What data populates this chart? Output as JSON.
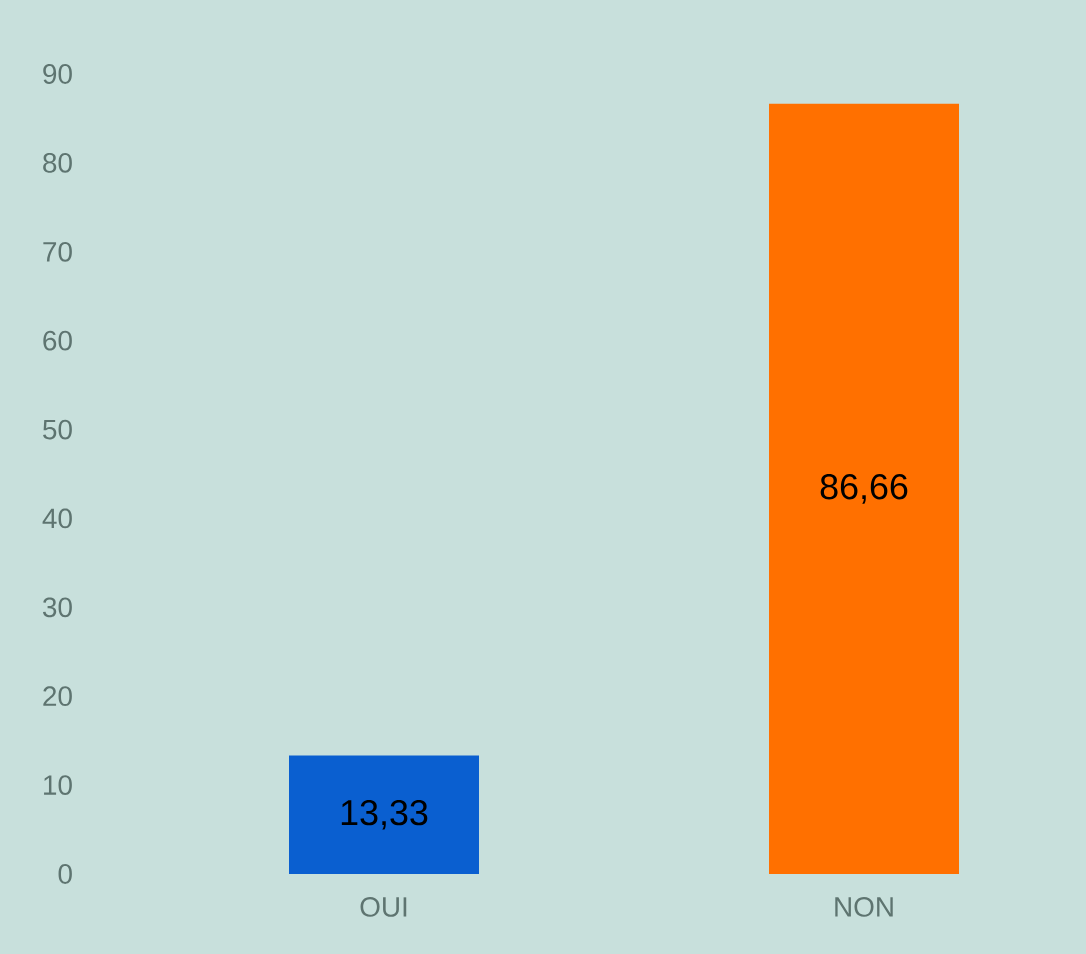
{
  "chart_data": {
    "type": "bar",
    "categories": [
      "OUI",
      "NON"
    ],
    "values": [
      13.33,
      86.66
    ],
    "colors": [
      "#0a5fd0",
      "#ff7000"
    ],
    "value_labels": [
      "13,33",
      "86,66"
    ],
    "ylim": [
      0,
      90
    ],
    "yticks": [
      0,
      10,
      20,
      30,
      40,
      50,
      60,
      70,
      80,
      90
    ],
    "grid": false
  }
}
